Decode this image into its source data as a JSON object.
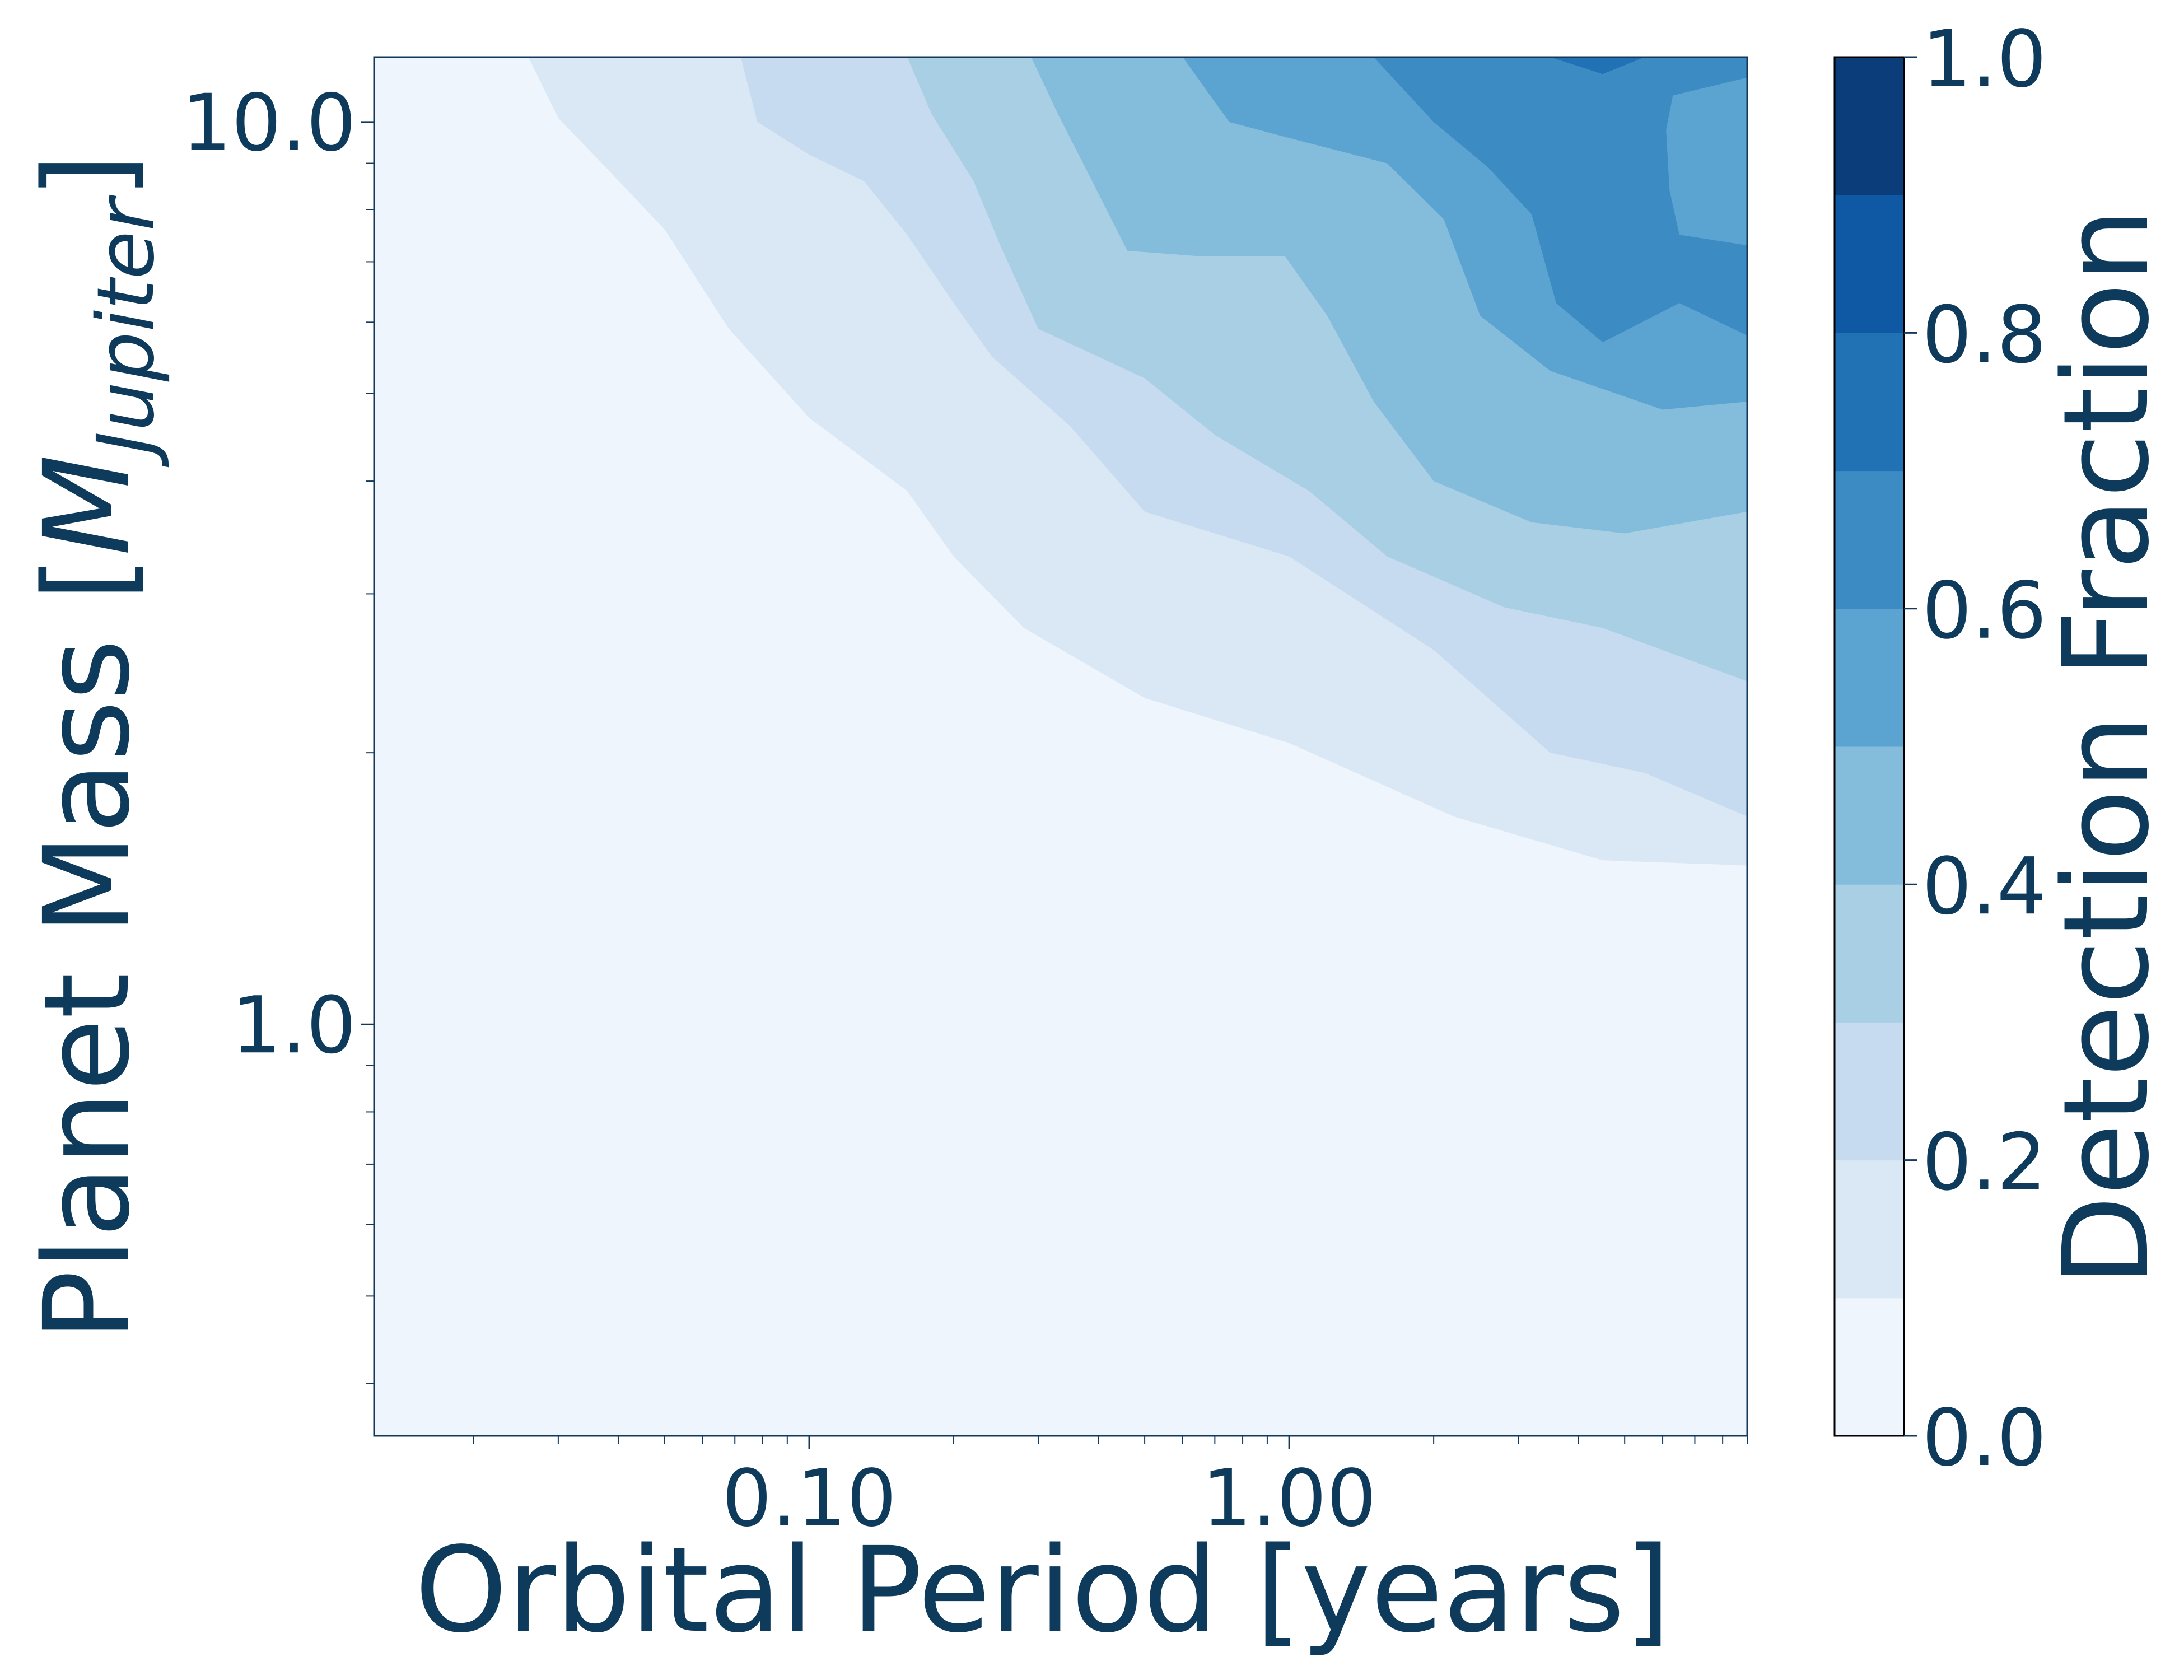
{
  "chart_data": {
    "type": "contour",
    "xlabel": "Orbital Period [years]",
    "ylabel": {
      "main": "Planet Mass [",
      "symbol": "M",
      "subscript": "Jupiter",
      "close": "]"
    },
    "x_scale": "log",
    "y_scale": "log",
    "xlim": [
      0.0124,
      9.0
    ],
    "ylim": [
      0.35,
      11.8
    ],
    "x_ticks": [
      {
        "value": 0.1,
        "label": "0.10"
      },
      {
        "value": 1.0,
        "label": "1.00"
      }
    ],
    "y_ticks": [
      {
        "value": 1.0,
        "label": "1.0"
      },
      {
        "value": 10.0,
        "label": "10.0"
      }
    ],
    "colorbar": {
      "label": "Detection Fraction",
      "range": [
        0.0,
        1.0
      ],
      "ticks": [
        {
          "value": 0.0,
          "label": "0.0"
        },
        {
          "value": 0.2,
          "label": "0.2"
        },
        {
          "value": 0.4,
          "label": "0.4"
        },
        {
          "value": 0.6,
          "label": "0.6"
        },
        {
          "value": 0.8,
          "label": "0.8"
        },
        {
          "value": 1.0,
          "label": "1.0"
        }
      ],
      "levels": [
        0.0,
        0.1,
        0.2,
        0.3,
        0.4,
        0.5,
        0.6,
        0.7,
        0.8,
        0.9,
        1.0
      ],
      "colors": [
        "#eef5fc",
        "#dae8f5",
        "#c6dbef",
        "#a9cfe5",
        "#84bcdb",
        "#5ba3d0",
        "#3d8bc3",
        "#2171b5",
        "#0f58a3",
        "#0a3d7a"
      ]
    },
    "contour_levels": [
      {
        "level": 0.1,
        "boundary": [
          [
            0.026,
            11.8
          ],
          [
            0.03,
            10.1
          ],
          [
            0.037,
            9.0
          ],
          [
            0.05,
            7.6
          ],
          [
            0.068,
            5.9
          ],
          [
            0.1,
            4.7
          ],
          [
            0.16,
            3.9
          ],
          [
            0.2,
            3.3
          ],
          [
            0.28,
            2.75
          ],
          [
            0.5,
            2.3
          ],
          [
            1.0,
            2.05
          ],
          [
            2.2,
            1.7
          ],
          [
            4.5,
            1.52
          ],
          [
            9.0,
            1.5
          ]
        ]
      },
      {
        "level": 0.2,
        "boundary": [
          [
            0.072,
            11.8
          ],
          [
            0.078,
            10.0
          ],
          [
            0.1,
            9.2
          ],
          [
            0.13,
            8.6
          ],
          [
            0.16,
            7.5
          ],
          [
            0.2,
            6.3
          ],
          [
            0.24,
            5.5
          ],
          [
            0.35,
            4.6
          ],
          [
            0.5,
            3.7
          ],
          [
            1.0,
            3.3
          ],
          [
            2.0,
            2.6
          ],
          [
            3.5,
            2.0
          ],
          [
            5.5,
            1.9
          ],
          [
            9.0,
            1.7
          ]
        ]
      },
      {
        "level": 0.3,
        "boundary": [
          [
            0.16,
            11.8
          ],
          [
            0.18,
            10.2
          ],
          [
            0.22,
            8.6
          ],
          [
            0.25,
            7.3
          ],
          [
            0.3,
            5.9
          ],
          [
            0.5,
            5.2
          ],
          [
            0.7,
            4.5
          ],
          [
            1.1,
            3.9
          ],
          [
            1.6,
            3.3
          ],
          [
            2.8,
            2.9
          ],
          [
            4.5,
            2.75
          ],
          [
            9.0,
            2.4
          ]
        ]
      },
      {
        "level": 0.4,
        "boundary": [
          [
            0.29,
            11.8
          ],
          [
            0.33,
            10.2
          ],
          [
            0.38,
            8.8
          ],
          [
            0.46,
            7.2
          ],
          [
            0.65,
            7.1
          ],
          [
            0.98,
            7.1
          ],
          [
            1.2,
            6.1
          ],
          [
            1.5,
            4.9
          ],
          [
            2.0,
            4.0
          ],
          [
            3.2,
            3.6
          ],
          [
            5.0,
            3.5
          ],
          [
            9.0,
            3.7
          ]
        ]
      },
      {
        "level": 0.5,
        "boundary": [
          [
            0.6,
            11.8
          ],
          [
            0.75,
            10.0
          ],
          [
            1.0,
            9.6
          ],
          [
            1.6,
            9.0
          ],
          [
            2.1,
            7.8
          ],
          [
            2.5,
            6.1
          ],
          [
            3.5,
            5.3
          ],
          [
            6.0,
            4.8
          ],
          [
            9.0,
            4.9
          ]
        ]
      },
      {
        "level": 0.6,
        "boundary": [
          [
            1.5,
            11.8
          ],
          [
            2.0,
            10.0
          ],
          [
            2.6,
            8.9
          ],
          [
            3.2,
            7.9
          ],
          [
            3.6,
            6.3
          ],
          [
            4.5,
            5.7
          ],
          [
            6.5,
            6.3
          ],
          [
            9.0,
            5.8
          ]
        ]
      },
      {
        "level": 0.7,
        "boundary": [
          [
            3.5,
            11.8
          ],
          [
            4.5,
            11.3
          ],
          [
            5.5,
            11.8
          ]
        ]
      }
    ],
    "inner_patch": {
      "level": 0.5,
      "boundary": [
        [
          6.3,
          10.7
        ],
        [
          9.0,
          11.2
        ],
        [
          9.0,
          7.3
        ],
        [
          6.5,
          7.5
        ],
        [
          6.2,
          8.4
        ],
        [
          6.1,
          9.8
        ]
      ]
    }
  }
}
